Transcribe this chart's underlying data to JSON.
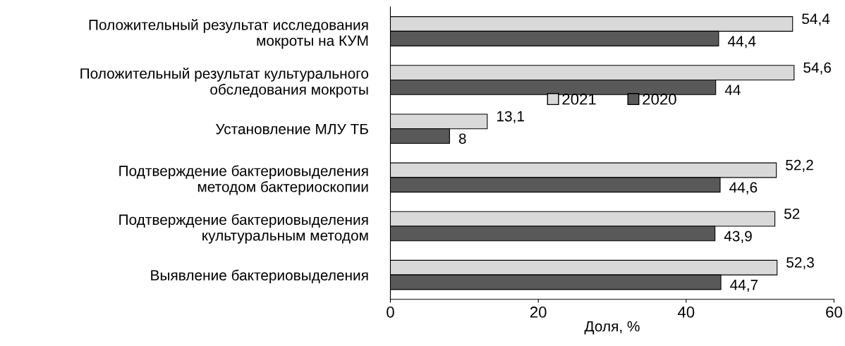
{
  "chart_data": {
    "type": "bar",
    "orientation": "horizontal",
    "xlabel": "Доля, %",
    "categories": [
      "Положительный результат исследования\nмокроты на КУМ",
      "Положительный результат культурального\nобследования мокроты",
      "Установление МЛУ ТБ",
      "Подтверждение бактериовыделения\nметодом бактериоскопии",
      "Подтверждение бактериовыделения\nкультуральным методом",
      "Выявление бактериовыделения"
    ],
    "series": [
      {
        "name": "2021",
        "color": "#d9d9d9",
        "values": [
          54.4,
          54.6,
          13.1,
          52.2,
          52,
          52.3
        ],
        "value_labels": [
          "54,4",
          "54,6",
          "13,1",
          "52,2",
          "52",
          "52,3"
        ]
      },
      {
        "name": "2020",
        "color": "#595959",
        "values": [
          44.4,
          44,
          8,
          44.6,
          43.9,
          44.7
        ],
        "value_labels": [
          "44,4",
          "44",
          "8",
          "44,6",
          "43,9",
          "44,7"
        ]
      }
    ],
    "xlim": [
      0,
      60
    ],
    "xticks": [
      0,
      20,
      40,
      60
    ],
    "grid": false,
    "legend": "center"
  }
}
